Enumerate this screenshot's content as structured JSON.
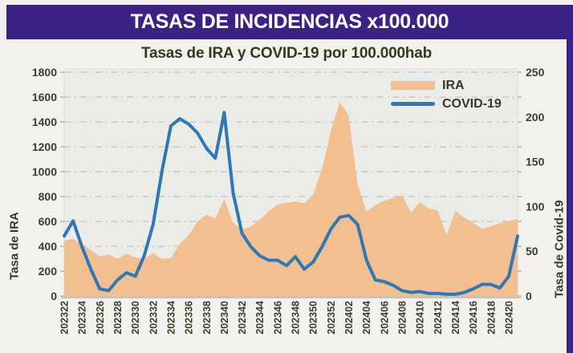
{
  "banner": {
    "title": "TASAS DE INCIDENCIAS x100.000"
  },
  "subtitle": "Tasas de IRA y COVID-19 por 100.000hab",
  "colors": {
    "banner_purple": "#3d2285",
    "page_bg": "#f2f1ee",
    "plot_bg": "#ebebe8",
    "grid": "#b8b8b2",
    "axis_text": "#39412c",
    "ira_fill": "#f2bf90",
    "covid_line": "#2f77b5"
  },
  "legend": {
    "entries": [
      {
        "label": "IRA",
        "swatch": "area-swatch",
        "color": "#f2bf90"
      },
      {
        "label": "COVID-19",
        "swatch": "line-swatch",
        "color": "#2f77b5"
      }
    ]
  },
  "chart_data": {
    "type": "area+line",
    "title": "Tasas de IRA y COVID-19 por 100.000hab",
    "grid": "horizontal dash-dot",
    "legend_position": "top-right inside plot",
    "x": [
      "202322",
      "202323",
      "202324",
      "202325",
      "202326",
      "202327",
      "202328",
      "202329",
      "202330",
      "202331",
      "202332",
      "202333",
      "202334",
      "202335",
      "202336",
      "202337",
      "202338",
      "202339",
      "202340",
      "202341",
      "202342",
      "202343",
      "202344",
      "202345",
      "202346",
      "202347",
      "202348",
      "202349",
      "202350",
      "202351",
      "202352",
      "202401",
      "202402",
      "202403",
      "202404",
      "202405",
      "202406",
      "202407",
      "202408",
      "202409",
      "202410",
      "202411",
      "202412",
      "202413",
      "202414",
      "202415",
      "202416",
      "202417",
      "202418",
      "202419",
      "202420",
      "202421"
    ],
    "x_tick_labels": [
      "202322",
      "202324",
      "202326",
      "202328",
      "202330",
      "202332",
      "202334",
      "202336",
      "202338",
      "202340",
      "202342",
      "202344",
      "202346",
      "202348",
      "202350",
      "202352",
      "202402",
      "202404",
      "202406",
      "202408",
      "202410",
      "202412",
      "202414",
      "202416",
      "202418",
      "202420"
    ],
    "left_axis": {
      "label": "Tasa de IRA",
      "min": 0,
      "max": 1800,
      "step": 200,
      "ticks": [
        "0",
        "200",
        "400",
        "600",
        "800",
        "1000",
        "1200",
        "1400",
        "1600",
        "1800"
      ]
    },
    "right_axis": {
      "label": "Tasa de Covid-19",
      "min": 0,
      "max": 250,
      "step": 50,
      "ticks": [
        "0",
        "50",
        "100",
        "150",
        "200",
        "250"
      ]
    },
    "series": [
      {
        "name": "IRA",
        "type": "area",
        "axis": "left",
        "color": "#f2bf90",
        "values": [
          445,
          460,
          415,
          370,
          320,
          335,
          300,
          340,
          310,
          300,
          345,
          300,
          305,
          420,
          490,
          600,
          655,
          625,
          780,
          590,
          535,
          560,
          615,
          680,
          735,
          750,
          760,
          745,
          815,
          1020,
          1330,
          1560,
          1450,
          900,
          680,
          730,
          765,
          790,
          810,
          670,
          755,
          705,
          690,
          490,
          685,
          630,
          590,
          540,
          560,
          585,
          605,
          620
        ]
      },
      {
        "name": "COVID-19",
        "type": "line",
        "axis": "right",
        "color": "#2f77b5",
        "values": [
          67,
          84,
          55,
          30,
          8,
          6,
          18,
          26,
          22,
          45,
          80,
          140,
          190,
          198,
          192,
          182,
          165,
          154,
          205,
          115,
          70,
          55,
          45,
          40,
          40,
          34,
          44,
          30,
          38,
          55,
          75,
          88,
          90,
          80,
          40,
          18,
          16,
          12,
          6,
          4,
          5,
          3,
          3,
          2,
          2,
          4,
          8,
          13,
          13,
          9,
          22,
          67
        ]
      }
    ]
  }
}
